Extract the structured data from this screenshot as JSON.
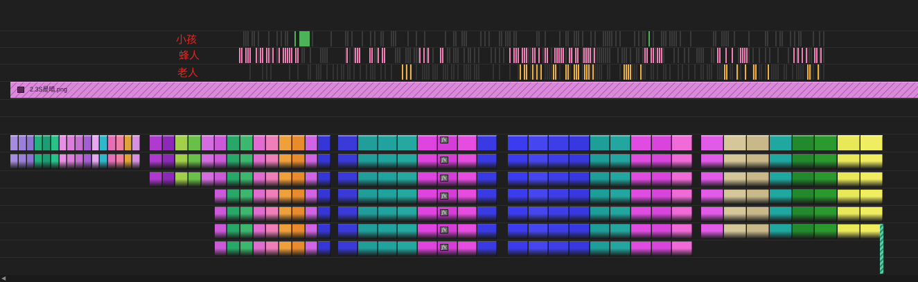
{
  "markers": {
    "child": "小孩",
    "bee_man": "蜂人",
    "old_man": "老人"
  },
  "still_clip": {
    "name": "2.3S是暗.png",
    "color": "#d98ad8"
  },
  "icons": {
    "still_icon": "image-icon",
    "fx_badge": "fx-badge-icon"
  },
  "fx_label": "fx",
  "colors": {
    "background": "#1f1f1f",
    "child_marker": "#4cb35a",
    "bee_marker": "#f07fb5",
    "old_marker": "#f0b23c",
    "label_red": "#e3271f"
  },
  "clip_groups": [
    {
      "name": "group-1",
      "palette": [
        "#a78be0",
        "#9c7fd9",
        "#8f73d4",
        "#22b07c",
        "#1f9c74",
        "#2bc28a",
        "#e88fe3",
        "#dc7dda",
        "#c96fd1",
        "#a35ed6",
        "#e6a8f0",
        "#2fb8c9",
        "#e56fb4",
        "#f07fa5",
        "#e0a33a",
        "#d890e0"
      ]
    },
    {
      "name": "group-2",
      "palette": [
        "#b03ad0",
        "#8c29b8",
        "#a3d04a",
        "#6abf4a",
        "#d46ee0",
        "#cc5ad8",
        "#28a868",
        "#3bb86e",
        "#e16ccf",
        "#ef7fb8",
        "#f0a03a",
        "#e88a2e",
        "#d064e4",
        "#3636d8"
      ]
    },
    {
      "name": "group-3",
      "palette": [
        "#3a3ad8",
        "#1f9e9a",
        "#20a39e",
        "#24a8a0",
        "#e044e0",
        "#d63cd8",
        "#e64ce0",
        "#3a3ae4"
      ]
    },
    {
      "name": "group-4",
      "palette": [
        "#3b3bf0",
        "#4646f0",
        "#3e3ee8",
        "#3838e0",
        "#1d9e98",
        "#23a6a0",
        "#e04ce2",
        "#d844dc",
        "#f06ad8"
      ]
    },
    {
      "name": "group-5",
      "palette": [
        "#e25ae8",
        "#d6c79a",
        "#c9b98a",
        "#1ea8a0",
        "#228a2c",
        "#2a9a2e",
        "#e8e858",
        "#f0ee60"
      ]
    }
  ]
}
